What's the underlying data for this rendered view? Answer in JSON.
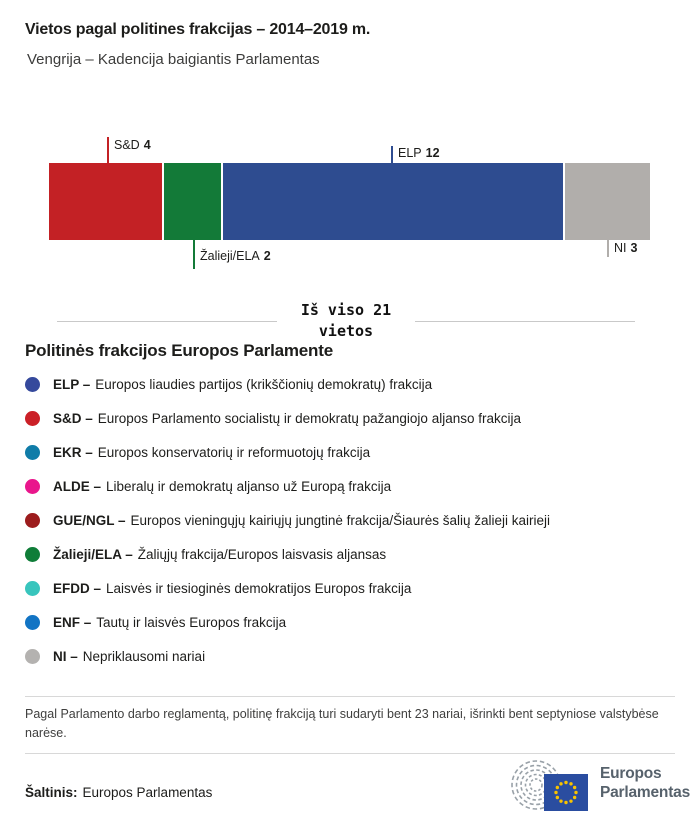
{
  "header": {
    "title": "Vietos pagal politines frakcijas – 2014–2019 m.",
    "subtitle": "Vengrija – Kadencija baigiantis Parlamentas"
  },
  "chart_data": {
    "type": "bar",
    "title": "Vietos pagal politines frakcijas – 2014–2019 m.",
    "subtitle": "Vengrija – Kadencija baigiantis Parlamentas",
    "orientation": "horizontal-stacked",
    "total_seats": 21,
    "total_label": {
      "line1": "Iš viso 21",
      "line2": "vietos"
    },
    "segments": [
      {
        "id": "sd",
        "label": "S&D",
        "seats": 4,
        "color": "#c32125",
        "callout_position": "top"
      },
      {
        "id": "zalieji-ela",
        "label": "Žalieji/ELA",
        "seats": 2,
        "color": "#137a38",
        "callout_position": "bottom"
      },
      {
        "id": "elp",
        "label": "ELP",
        "seats": 12,
        "color": "#2e4c90",
        "callout_position": "top"
      },
      {
        "id": "ni",
        "label": "NI",
        "seats": 3,
        "color": "#b1aeab",
        "callout_position": "bottom"
      }
    ]
  },
  "legend": {
    "heading": "Politinės frakcijos Europos Parlamente",
    "items": [
      {
        "id": "elp",
        "label": "ELP –",
        "desc": "Europos liaudies partijos (krikščionių demokratų) frakcija",
        "color": "#35499c"
      },
      {
        "id": "sd",
        "label": "S&D –",
        "desc": "Europos Parlamento socialistų ir demokratų pažangiojo aljanso frakcija",
        "color": "#cb2027"
      },
      {
        "id": "ekr",
        "label": "EKR –",
        "desc": "Europos konservatorių ir reformuotojų frakcija",
        "color": "#107ca8"
      },
      {
        "id": "alde",
        "label": "ALDE –",
        "desc": "Liberalų ir demokratų aljanso už Europą frakcija",
        "color": "#e9168c"
      },
      {
        "id": "gue-ngl",
        "label": "GUE/NGL –",
        "desc": "Europos vieningųjų kairiųjų jungtinė frakcija/Šiaurės šalių žalieji kairieji",
        "color": "#9c1c1d"
      },
      {
        "id": "zalieji-ela",
        "label": "Žalieji/ELA –",
        "desc": "Žaliųjų frakcija/Europos laisvasis aljansas",
        "color": "#0f7d38"
      },
      {
        "id": "efdd",
        "label": "EFDD –",
        "desc": "Laisvės ir tiesioginės demokratijos Europos frakcija",
        "color": "#38c5bd"
      },
      {
        "id": "enf",
        "label": "ENF –",
        "desc": "Tautų ir laisvės Europos frakcija",
        "color": "#1274c4"
      },
      {
        "id": "ni",
        "label": "NI –",
        "desc": "Nepriklausomi nariai",
        "color": "#b4b2b0"
      }
    ]
  },
  "footnote": "Pagal Parlamento darbo reglamentą, politinę frakciją turi sudaryti bent 23 nariai, išrinkti bent septyniose valstybėse narėse.",
  "source": {
    "label": "Šaltinis:",
    "value": "Europos Parlamentas"
  },
  "logo": {
    "line1": "Europos",
    "line2": "Parlamentas"
  },
  "colors": {
    "divider": "#d8d8d8",
    "total_line": "#c9c9c9",
    "logo_text": "#57626c",
    "flag_blue": "#2a4da0",
    "flag_star": "#f8c301",
    "hemicycle_gray": "#99a1a8"
  }
}
